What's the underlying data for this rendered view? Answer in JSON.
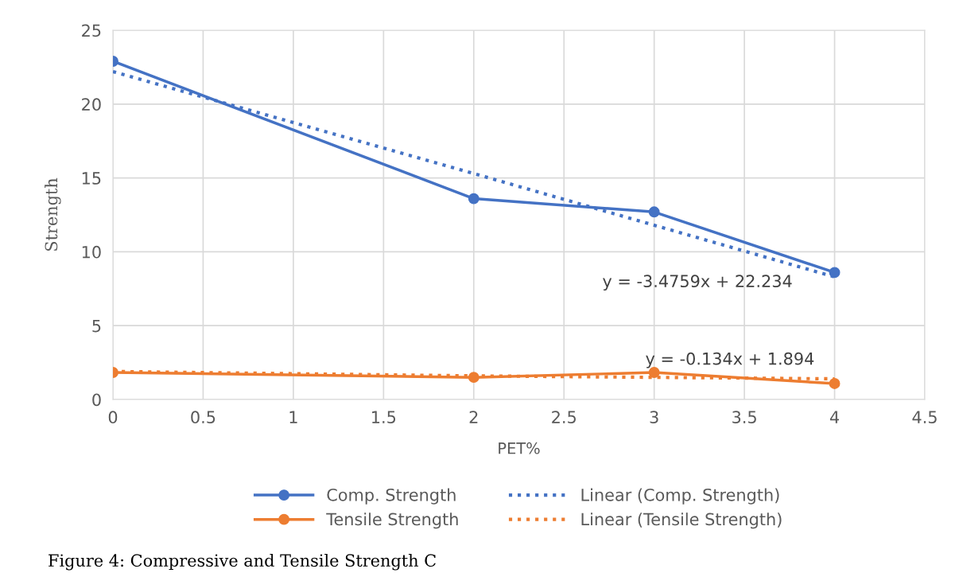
{
  "chart_data": {
    "type": "line",
    "xlabel": "PET%",
    "ylabel": "Strength",
    "x": [
      0,
      2,
      3,
      4
    ],
    "series": [
      {
        "name": "Comp. Strength",
        "color": "#4472c4",
        "values": [
          22.9,
          13.6,
          12.7,
          8.6
        ],
        "marker": "circle",
        "line_style": "solid"
      },
      {
        "name": "Tensile Strength",
        "color": "#ed7d31",
        "values": [
          1.83,
          1.5,
          1.83,
          1.08
        ],
        "marker": "circle",
        "line_style": "solid"
      },
      {
        "name": "Linear (Comp. Strength)",
        "color": "#4472c4",
        "values": [
          22.2,
          15.3,
          11.8,
          8.3
        ],
        "marker": "none",
        "line_style": "dotted"
      },
      {
        "name": "Linear (Tensile Strength)",
        "color": "#ed7d31",
        "values": [
          1.9,
          1.6,
          1.5,
          1.4
        ],
        "marker": "none",
        "line_style": "dotted"
      }
    ],
    "annotations": [
      "y = -3.4759x + 22.234",
      "y = -0.134x + 1.894",
      "Figure 4: Compressive and Tensile Strength C"
    ],
    "xlim": [
      0,
      4.5
    ],
    "xticks": [
      0,
      0.5,
      1,
      1.5,
      2,
      2.5,
      3,
      3.5,
      4,
      4.5
    ],
    "ylim": [
      0,
      25
    ],
    "yticks": [
      0,
      5,
      10,
      15,
      20,
      25
    ],
    "grid": true,
    "legend": "bottom"
  }
}
